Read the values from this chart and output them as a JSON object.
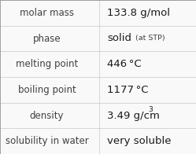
{
  "rows": [
    {
      "label": "molar mass",
      "value": "133.8 g/mol",
      "type": "plain"
    },
    {
      "label": "phase",
      "value": "solid",
      "type": "sub",
      "sub": " (at STP)"
    },
    {
      "label": "melting point",
      "value": "446 °C",
      "type": "plain"
    },
    {
      "label": "boiling point",
      "value": "1177 °C",
      "type": "plain"
    },
    {
      "label": "density",
      "value": "3.49 g/cm",
      "type": "sup",
      "sup": "3"
    },
    {
      "label": "solubility in water",
      "value": "very soluble",
      "type": "plain"
    }
  ],
  "n_rows": 6,
  "col_split": 0.508,
  "bg_color": "#f9f9f9",
  "line_color": "#c8c8c8",
  "label_color": "#404040",
  "value_color": "#1a1a1a",
  "label_fontsize": 8.5,
  "value_fontsize": 9.5,
  "sub_fontsize": 6.8,
  "sup_fontsize": 6.5,
  "label_font": "DejaVu Sans",
  "value_font": "DejaVu Sans"
}
